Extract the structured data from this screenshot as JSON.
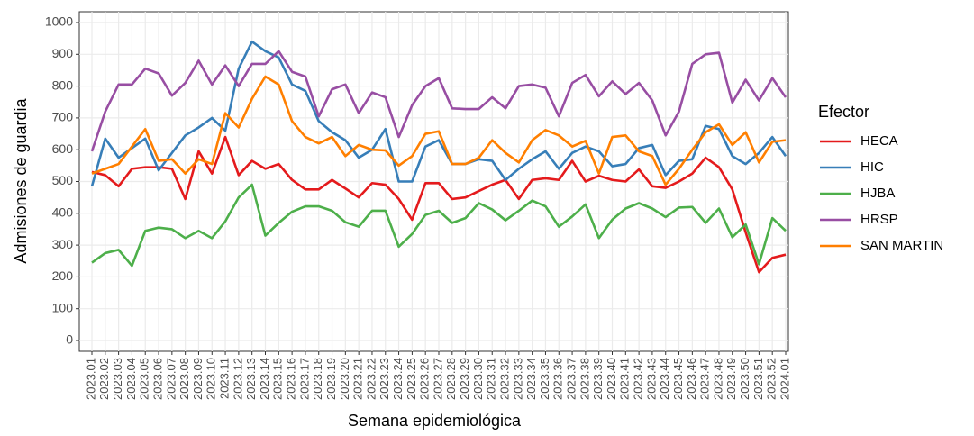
{
  "chart_data": {
    "type": "line",
    "x_label": "Semana epidemiológica",
    "y_label": "Admisiones de guardia",
    "legend_title": "Efector",
    "legend_position": "right",
    "grid": true,
    "categories": [
      "2023.01",
      "2023.02",
      "2023.03",
      "2023.04",
      "2023.05",
      "2023.06",
      "2023.07",
      "2023.08",
      "2023.09",
      "2023.10",
      "2023.11",
      "2023.12",
      "2023.13",
      "2023.14",
      "2023.15",
      "2023.16",
      "2023.17",
      "2023.18",
      "2023.19",
      "2023.20",
      "2023.21",
      "2023.22",
      "2023.23",
      "2023.24",
      "2023.25",
      "2023.26",
      "2023.27",
      "2023.28",
      "2023.29",
      "2023.30",
      "2023.31",
      "2023.32",
      "2023.33",
      "2023.34",
      "2023.35",
      "2023.36",
      "2023.37",
      "2023.38",
      "2023.39",
      "2023.40",
      "2023.41",
      "2023.42",
      "2023.43",
      "2023.44",
      "2023.45",
      "2023.46",
      "2023.47",
      "2023.48",
      "2023.49",
      "2023.50",
      "2023.51",
      "2023.52",
      "2024.01"
    ],
    "ylim": [
      0,
      1000
    ],
    "yticks": [
      0,
      100,
      200,
      300,
      400,
      500,
      600,
      700,
      800,
      900,
      1000
    ],
    "series": [
      {
        "name": "HECA",
        "color": "#e41a1c",
        "values": [
          530,
          520,
          485,
          540,
          545,
          545,
          540,
          445,
          595,
          525,
          640,
          520,
          565,
          540,
          555,
          505,
          475,
          475,
          505,
          478,
          450,
          495,
          490,
          445,
          380,
          495,
          495,
          445,
          450,
          470,
          490,
          505,
          445,
          505,
          510,
          505,
          565,
          500,
          518,
          505,
          500,
          538,
          485,
          480,
          500,
          525,
          575,
          545,
          475,
          340,
          215,
          260,
          270
        ]
      },
      {
        "name": "HIC",
        "color": "#377eb8",
        "values": [
          485,
          635,
          575,
          605,
          635,
          535,
          590,
          645,
          670,
          700,
          660,
          855,
          940,
          910,
          890,
          805,
          785,
          690,
          655,
          630,
          575,
          600,
          665,
          500,
          500,
          610,
          630,
          555,
          555,
          570,
          565,
          505,
          540,
          570,
          595,
          540,
          590,
          610,
          595,
          548,
          555,
          605,
          615,
          520,
          565,
          570,
          675,
          665,
          580,
          555,
          590,
          640,
          580
        ]
      },
      {
        "name": "HJBA",
        "color": "#4daf4a",
        "values": [
          245,
          275,
          285,
          235,
          345,
          355,
          350,
          322,
          345,
          322,
          375,
          450,
          490,
          330,
          370,
          405,
          422,
          422,
          408,
          372,
          358,
          408,
          408,
          295,
          335,
          395,
          408,
          370,
          385,
          432,
          412,
          378,
          408,
          440,
          422,
          358,
          390,
          428,
          322,
          380,
          415,
          432,
          415,
          388,
          418,
          420,
          370,
          415,
          325,
          365,
          240,
          385,
          345
        ]
      },
      {
        "name": "HRSP",
        "color": "#984ea3",
        "values": [
          595,
          720,
          805,
          805,
          855,
          840,
          770,
          810,
          880,
          805,
          865,
          800,
          870,
          870,
          910,
          845,
          830,
          705,
          790,
          805,
          715,
          780,
          765,
          640,
          740,
          800,
          825,
          730,
          728,
          728,
          765,
          730,
          800,
          805,
          795,
          705,
          810,
          835,
          768,
          815,
          775,
          810,
          755,
          645,
          720,
          870,
          900,
          905,
          748,
          820,
          755,
          825,
          765
        ]
      },
      {
        "name": "SAN MARTIN",
        "color": "#ff7f00",
        "values": [
          525,
          540,
          555,
          610,
          665,
          565,
          570,
          525,
          570,
          555,
          715,
          670,
          760,
          830,
          805,
          690,
          640,
          620,
          640,
          580,
          615,
          600,
          598,
          550,
          580,
          650,
          658,
          555,
          555,
          575,
          630,
          590,
          560,
          630,
          662,
          645,
          610,
          628,
          525,
          640,
          645,
          595,
          580,
          490,
          540,
          600,
          655,
          680,
          615,
          655,
          560,
          625,
          630
        ]
      }
    ]
  }
}
